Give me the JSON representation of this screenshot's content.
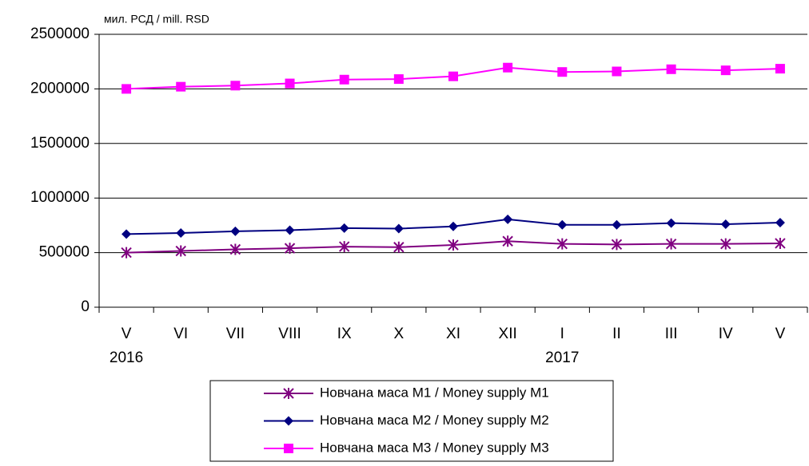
{
  "chart_data": {
    "type": "line",
    "y_label": "мил. РСД / mill. RSD",
    "categories": [
      "V",
      "VI",
      "VII",
      "VIII",
      "IX",
      "X",
      "XI",
      "XII",
      "I",
      "II",
      "III",
      "IV",
      "V"
    ],
    "years": [
      "2016",
      null,
      null,
      null,
      null,
      null,
      null,
      null,
      "2017",
      null,
      null,
      null,
      null
    ],
    "series": [
      {
        "name": "Новчана маса М1 / Money supply M1",
        "color": "#800080",
        "marker": "star",
        "values": [
          500000,
          515000,
          530000,
          540000,
          555000,
          550000,
          570000,
          605000,
          580000,
          575000,
          580000,
          580000,
          585000
        ]
      },
      {
        "name": "Новчана маса М2 / Money supply M2",
        "color": "#000080",
        "marker": "diamond",
        "values": [
          670000,
          680000,
          695000,
          705000,
          725000,
          720000,
          740000,
          805000,
          755000,
          755000,
          770000,
          760000,
          775000
        ]
      },
      {
        "name": "Новчана маса М3 / Money supply M3",
        "color": "#ff00ff",
        "marker": "square",
        "values": [
          2000000,
          2020000,
          2030000,
          2050000,
          2085000,
          2090000,
          2115000,
          2195000,
          2155000,
          2160000,
          2180000,
          2170000,
          2185000
        ]
      }
    ],
    "ylim": [
      0,
      2500000
    ],
    "yticks": [
      0,
      500000,
      1000000,
      1500000,
      2000000,
      2500000
    ],
    "grid": true,
    "legend": "bottom"
  }
}
